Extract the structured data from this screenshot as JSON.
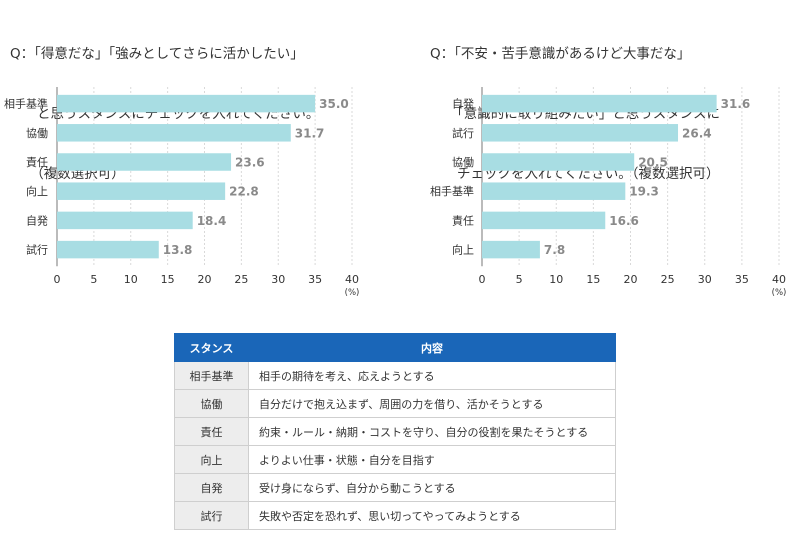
{
  "left_question": {
    "line1": "Q：「得意だな」「強みとしてさらに活かしたい」",
    "line2": "　　と思うスタンスにチェックを入れてください。",
    "line3": "　　（複数選択可）"
  },
  "right_question": {
    "line1": "Q：「不安・苦手意識があるけど大事だな」",
    "line2": "　　「意識的に取り組みたい」と思うスタンスに",
    "line3": "　　チェックを入れてください。（複数選択可）"
  },
  "chart_data": [
    {
      "type": "bar",
      "orientation": "horizontal",
      "categories": [
        "相手基準",
        "協働",
        "責任",
        "向上",
        "自発",
        "試行"
      ],
      "values": [
        35.0,
        31.7,
        23.6,
        22.8,
        18.4,
        13.8
      ],
      "value_labels": [
        "35.0",
        "31.7",
        "23.6",
        "22.8",
        "18.4",
        "13.8"
      ],
      "xlim": [
        0,
        40
      ],
      "xticks": [
        "0",
        "5",
        "10",
        "15",
        "20",
        "25",
        "30",
        "35",
        "40"
      ],
      "unit": "(%)",
      "grid": true,
      "bar_color": "#a8dde3"
    },
    {
      "type": "bar",
      "orientation": "horizontal",
      "categories": [
        "自発",
        "試行",
        "協働",
        "相手基準",
        "責任",
        "向上"
      ],
      "values": [
        31.6,
        26.4,
        20.5,
        19.3,
        16.6,
        7.8
      ],
      "value_labels": [
        "31.6",
        "26.4",
        "20.5",
        "19.3",
        "16.6",
        "7.8"
      ],
      "xlim": [
        0,
        40
      ],
      "xticks": [
        "0",
        "5",
        "10",
        "15",
        "20",
        "25",
        "30",
        "35",
        "40"
      ],
      "unit": "(%)",
      "grid": true,
      "bar_color": "#a8dde3"
    }
  ],
  "table": {
    "header": {
      "col1": "スタンス",
      "col2": "内容"
    },
    "header_color": "#1a66b8",
    "rows": [
      {
        "stance": "相手基準",
        "description": "相手の期待を考え、応えようとする"
      },
      {
        "stance": "協働",
        "description": "自分だけで抱え込まず、周囲の力を借り、活かそうとする"
      },
      {
        "stance": "責任",
        "description": "約束・ルール・納期・コストを守り、自分の役割を果たそうとする"
      },
      {
        "stance": "向上",
        "description": "よりよい仕事・状態・自分を目指す"
      },
      {
        "stance": "自発",
        "description": "受け身にならず、自分から動こうとする"
      },
      {
        "stance": "試行",
        "description": "失敗や否定を恐れず、思い切ってやってみようとする"
      }
    ]
  }
}
